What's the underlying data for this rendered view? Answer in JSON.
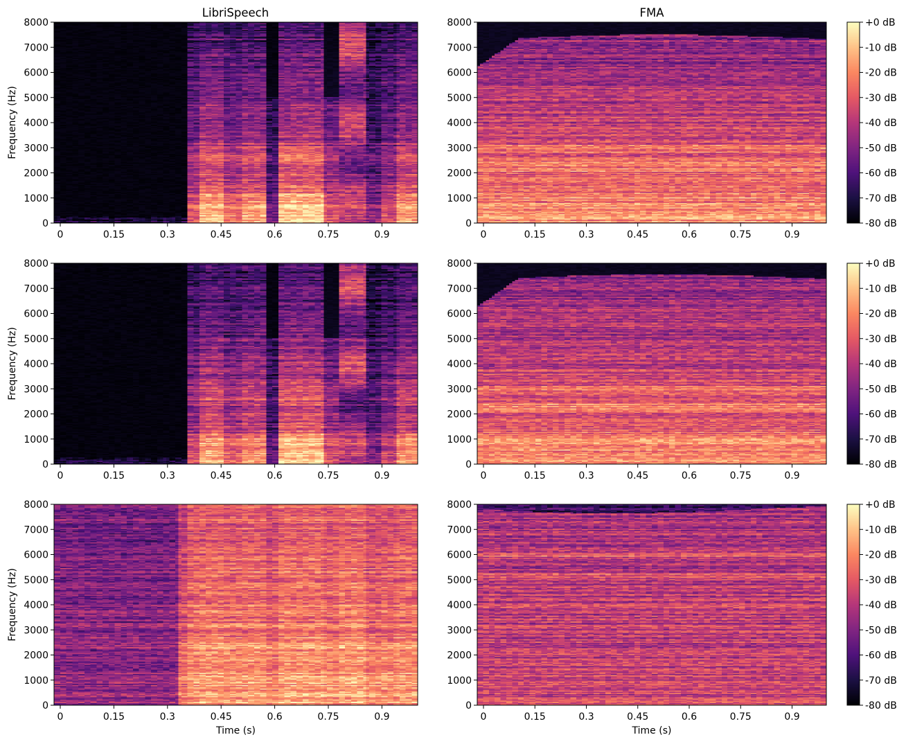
{
  "chart_data": {
    "type": "heatmap",
    "layout": {
      "rows": 3,
      "cols": 2,
      "colorbar_on": "right-column"
    },
    "column_titles": [
      "LibriSpeech",
      "FMA"
    ],
    "xlabel": "Time (s)",
    "ylabel": "Frequency (Hz)",
    "x_ticks": [
      "0",
      "0.15",
      "0.3",
      "0.45",
      "0.6",
      "0.75",
      "0.9"
    ],
    "y_ticks": [
      "0",
      "1000",
      "2000",
      "3000",
      "4000",
      "5000",
      "6000",
      "7000",
      "8000"
    ],
    "colorbar_ticks": [
      "+0 dB",
      "-10 dB",
      "-20 dB",
      "-30 dB",
      "-40 dB",
      "-50 dB",
      "-60 dB",
      "-70 dB",
      "-80 dB"
    ],
    "colormap": "magma",
    "colormap_stops": [
      "#000004",
      "#1c1044",
      "#4f127b",
      "#812581",
      "#b5367a",
      "#e55964",
      "#fb8761",
      "#fec287",
      "#fcfdbf"
    ],
    "xlim": [
      0,
      1.0
    ],
    "ylim": [
      0,
      8000
    ],
    "clim_db": [
      -80,
      0
    ],
    "panels": [
      {
        "row": 0,
        "col": 0,
        "dataset": "LibriSpeech",
        "x_ticks_visible": true,
        "xlabel_visible": false,
        "colorbar": false
      },
      {
        "row": 0,
        "col": 1,
        "dataset": "FMA",
        "x_ticks_visible": true,
        "xlabel_visible": false,
        "colorbar": true
      },
      {
        "row": 1,
        "col": 0,
        "dataset": "LibriSpeech",
        "x_ticks_visible": true,
        "xlabel_visible": false,
        "colorbar": false
      },
      {
        "row": 1,
        "col": 1,
        "dataset": "FMA",
        "x_ticks_visible": true,
        "xlabel_visible": false,
        "colorbar": true
      },
      {
        "row": 2,
        "col": 0,
        "dataset": "LibriSpeech",
        "x_ticks_visible": true,
        "xlabel_visible": true,
        "colorbar": false
      },
      {
        "row": 2,
        "col": 1,
        "dataset": "FMA",
        "x_ticks_visible": true,
        "xlabel_visible": true,
        "colorbar": true
      }
    ]
  }
}
